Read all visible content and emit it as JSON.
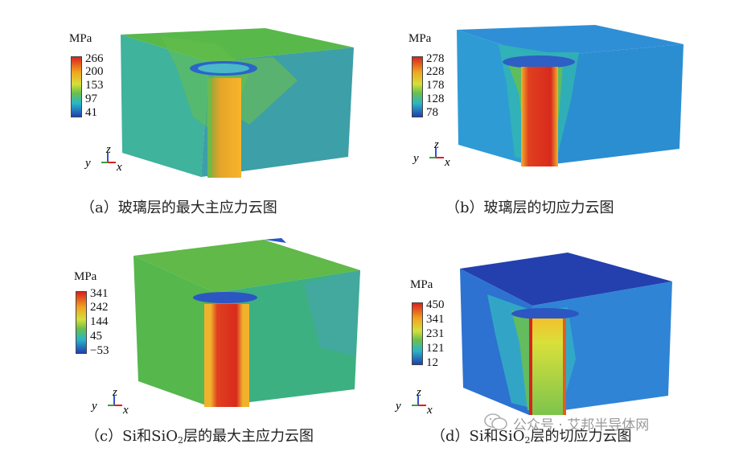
{
  "unit_label": "MPa",
  "axis_labels": {
    "y": "y",
    "z": "z",
    "x": "x"
  },
  "panels": [
    {
      "id": "a",
      "caption": "（a）玻璃层的最大主应力云图",
      "ticks": [
        "266",
        "200",
        "153",
        "97",
        "41"
      ]
    },
    {
      "id": "b",
      "caption": "（b）玻璃层的切应力云图",
      "ticks": [
        "278",
        "228",
        "178",
        "128",
        "78"
      ]
    },
    {
      "id": "c",
      "caption_pre": "（c）Si和SiO",
      "caption_sub": "2",
      "caption_post": "层的最大主应力云图",
      "ticks": [
        "341",
        "242",
        "144",
        "45",
        "−53"
      ]
    },
    {
      "id": "d",
      "caption_pre": "（d）Si和SiO",
      "caption_sub": "2",
      "caption_post": "层的切应力云图",
      "ticks": [
        "450",
        "341",
        "231",
        "121",
        "12"
      ]
    }
  ],
  "watermark": {
    "text": "公众号 · 艾邦半导体网"
  },
  "colors": {
    "red": "#d8231e",
    "orange": "#f39c1f",
    "yellow": "#e8e43a",
    "green": "#6cc04a",
    "cyan": "#2fb7c9",
    "blue": "#1f4fbf",
    "navy": "#233fa8"
  }
}
